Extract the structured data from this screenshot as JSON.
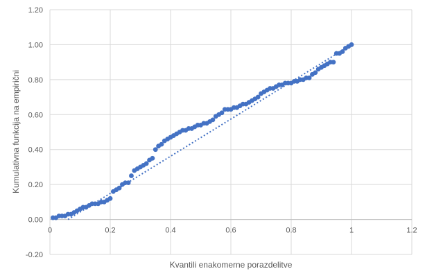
{
  "chart_data": {
    "type": "scatter",
    "title": "",
    "xlabel": "Kvantili enakomerne porazdelitve",
    "ylabel": "Kumulativna funkcija na empirični",
    "xlim": [
      0,
      1.2
    ],
    "ylim": [
      -0.2,
      1.2
    ],
    "x_ticks": [
      "0",
      "0.2",
      "0.4",
      "0.6",
      "0.8",
      "1",
      "1.2"
    ],
    "y_ticks": [
      "-0.20",
      "0.00",
      "0.20",
      "0.40",
      "0.60",
      "0.80",
      "1.00",
      "1.20"
    ],
    "grid": true,
    "legend": "none",
    "point_color": "#4472c4",
    "trendline": {
      "style": "dotted",
      "color": "#4472c4",
      "from": [
        0.06,
        0.0
      ],
      "to": [
        1.0,
        1.0
      ]
    },
    "series": [
      {
        "x": [
          0.01,
          0.02,
          0.03,
          0.04,
          0.05,
          0.06,
          0.07,
          0.08,
          0.09,
          0.1,
          0.11,
          0.12,
          0.13,
          0.14,
          0.15,
          0.16,
          0.17,
          0.18,
          0.19,
          0.2,
          0.21,
          0.22,
          0.23,
          0.24,
          0.25,
          0.26,
          0.27,
          0.28,
          0.29,
          0.3,
          0.31,
          0.32,
          0.33,
          0.34,
          0.35,
          0.36,
          0.37,
          0.38,
          0.39,
          0.4,
          0.41,
          0.42,
          0.43,
          0.44,
          0.45,
          0.46,
          0.47,
          0.48,
          0.49,
          0.5,
          0.51,
          0.52,
          0.53,
          0.54,
          0.55,
          0.56,
          0.57,
          0.58,
          0.59,
          0.6,
          0.61,
          0.62,
          0.63,
          0.64,
          0.65,
          0.66,
          0.67,
          0.68,
          0.69,
          0.7,
          0.71,
          0.72,
          0.73,
          0.74,
          0.75,
          0.76,
          0.77,
          0.78,
          0.79,
          0.8,
          0.81,
          0.82,
          0.83,
          0.84,
          0.85,
          0.86,
          0.87,
          0.88,
          0.89,
          0.9,
          0.91,
          0.92,
          0.93,
          0.94,
          0.95,
          0.96,
          0.97,
          0.98,
          0.99,
          1.0
        ],
        "y": [
          0.01,
          0.01,
          0.02,
          0.02,
          0.02,
          0.03,
          0.03,
          0.04,
          0.05,
          0.06,
          0.07,
          0.07,
          0.08,
          0.09,
          0.09,
          0.09,
          0.1,
          0.1,
          0.11,
          0.12,
          0.16,
          0.17,
          0.18,
          0.2,
          0.21,
          0.21,
          0.25,
          0.28,
          0.29,
          0.3,
          0.31,
          0.32,
          0.34,
          0.35,
          0.4,
          0.42,
          0.43,
          0.45,
          0.46,
          0.47,
          0.48,
          0.49,
          0.5,
          0.51,
          0.51,
          0.52,
          0.52,
          0.53,
          0.54,
          0.54,
          0.55,
          0.55,
          0.56,
          0.57,
          0.59,
          0.6,
          0.61,
          0.63,
          0.63,
          0.63,
          0.64,
          0.64,
          0.65,
          0.66,
          0.66,
          0.67,
          0.68,
          0.69,
          0.7,
          0.72,
          0.73,
          0.74,
          0.75,
          0.75,
          0.76,
          0.77,
          0.77,
          0.78,
          0.78,
          0.78,
          0.79,
          0.79,
          0.8,
          0.8,
          0.81,
          0.81,
          0.83,
          0.84,
          0.86,
          0.87,
          0.88,
          0.89,
          0.9,
          0.9,
          0.95,
          0.95,
          0.96,
          0.98,
          0.99,
          1.0
        ]
      }
    ]
  }
}
